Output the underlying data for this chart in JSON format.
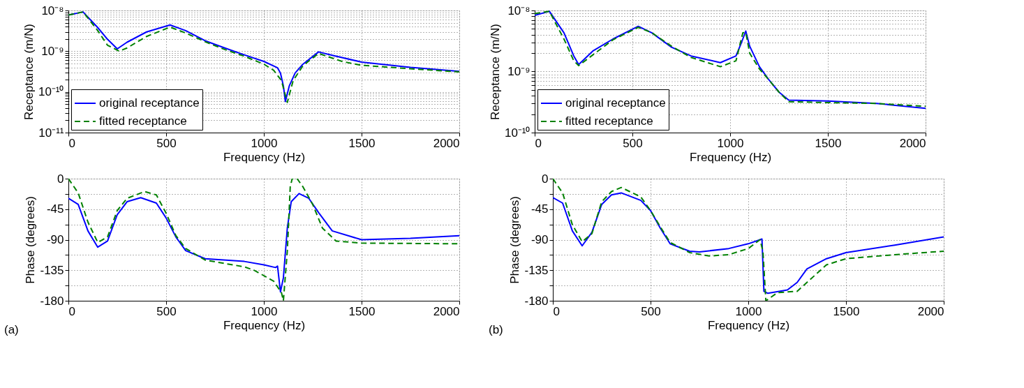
{
  "chart_data": [
    {
      "type": "line",
      "xlabel": "Frequency (Hz)",
      "ylabel": "Receptance (m/N)",
      "log": "y",
      "grid": true,
      "legend": "bottom left",
      "xlim": [
        0,
        2000
      ],
      "xticks": [
        0,
        500,
        1000,
        1500,
        2000
      ],
      "ylim": [
        1e-11,
        1e-08
      ],
      "yticks": [
        {
          "value": 1e-11,
          "label": "10⁻¹¹"
        },
        {
          "value": 2e-11,
          "label": null
        },
        {
          "value": 3e-11,
          "label": null
        },
        {
          "value": 4e-11,
          "label": null
        },
        {
          "value": 5e-11,
          "label": null
        },
        {
          "value": 6e-11,
          "label": null
        },
        {
          "value": 7e-11,
          "label": null
        },
        {
          "value": 8e-11,
          "label": null
        },
        {
          "value": 9e-11,
          "label": null
        },
        {
          "value": 1e-10,
          "label": "10⁻¹⁰"
        },
        {
          "value": 2e-10,
          "label": null
        },
        {
          "value": 3e-10,
          "label": null
        },
        {
          "value": 4e-10,
          "label": null
        },
        {
          "value": 5e-10,
          "label": null
        },
        {
          "value": 6e-10,
          "label": null
        },
        {
          "value": 7e-10,
          "label": null
        },
        {
          "value": 8e-10,
          "label": null
        },
        {
          "value": 9e-10,
          "label": null
        },
        {
          "value": 1e-09,
          "label": "10⁻⁹"
        },
        {
          "value": 2e-09,
          "label": null
        },
        {
          "value": 3e-09,
          "label": null
        },
        {
          "value": 4e-09,
          "label": null
        },
        {
          "value": 5e-09,
          "label": null
        },
        {
          "value": 6e-09,
          "label": null
        },
        {
          "value": 7e-09,
          "label": null
        },
        {
          "value": 8e-09,
          "label": null
        },
        {
          "value": 9e-09,
          "label": null
        },
        {
          "value": 1e-08,
          "label": "10⁻⁸"
        }
      ],
      "series": [
        {
          "name": "original receptance",
          "color": "#0000ff",
          "line_style": "solid",
          "x": [
            0,
            75,
            150,
            200,
            250,
            300,
            400,
            520,
            600,
            700,
            800,
            900,
            1000,
            1070,
            1085,
            1100,
            1110,
            1130,
            1160,
            1200,
            1280,
            1350,
            1500,
            1750,
            2000
          ],
          "values": [
            7.7e-09,
            9.2e-09,
            3.8e-09,
            1.96e-09,
            1.14e-09,
            1.66e-09,
            2.97e-09,
            4.4e-09,
            3.2e-09,
            1.8e-09,
            1.2e-09,
            8.1e-10,
            5.6e-10,
            3.9e-10,
            2.9e-10,
            1.4e-10,
            5.8e-11,
            1.4e-10,
            2.9e-10,
            4.8e-10,
            9.6e-10,
            7.9e-10,
            5.4e-10,
            4e-10,
            3.2e-10
          ]
        },
        {
          "name": "fitted receptance",
          "color": "#008000",
          "line_style": "dashed",
          "x": [
            0,
            75,
            150,
            200,
            260,
            300,
            400,
            520,
            600,
            700,
            800,
            900,
            1000,
            1050,
            1090,
            1120,
            1150,
            1200,
            1280,
            1400,
            1500,
            1750,
            2000
          ],
          "values": [
            7.7e-09,
            9.2e-09,
            3.2e-09,
            1.4e-09,
            1e-09,
            1.2e-09,
            2.3e-09,
            3.9e-09,
            2.8e-09,
            1.7e-09,
            1.1e-09,
            7.5e-10,
            4.8e-10,
            3.4e-10,
            1.9e-10,
            5.5e-11,
            1.9e-10,
            4.4e-10,
            8.8e-10,
            5.6e-10,
            4.5e-10,
            3.7e-10,
            3.1e-10
          ]
        }
      ]
    },
    {
      "type": "line",
      "xlabel": "Frequency (Hz)",
      "ylabel": "Receptance (m/N)",
      "log": "y",
      "grid": true,
      "legend": "bottom left",
      "xlim": [
        0,
        2000
      ],
      "xticks": [
        0,
        500,
        1000,
        1500,
        2000
      ],
      "ylim": [
        1e-10,
        1e-08
      ],
      "yticks": [
        {
          "value": 1e-10,
          "label": "10⁻¹⁰"
        },
        {
          "value": 2e-10,
          "label": null
        },
        {
          "value": 3e-10,
          "label": null
        },
        {
          "value": 4e-10,
          "label": null
        },
        {
          "value": 5e-10,
          "label": null
        },
        {
          "value": 6e-10,
          "label": null
        },
        {
          "value": 7e-10,
          "label": null
        },
        {
          "value": 8e-10,
          "label": null
        },
        {
          "value": 9e-10,
          "label": null
        },
        {
          "value": 1e-09,
          "label": "10⁻⁹"
        },
        {
          "value": 2e-09,
          "label": null
        },
        {
          "value": 3e-09,
          "label": null
        },
        {
          "value": 4e-09,
          "label": null
        },
        {
          "value": 5e-09,
          "label": null
        },
        {
          "value": 6e-09,
          "label": null
        },
        {
          "value": 7e-09,
          "label": null
        },
        {
          "value": 8e-09,
          "label": null
        },
        {
          "value": 9e-09,
          "label": null
        },
        {
          "value": 1e-08,
          "label": "10⁻⁸"
        }
      ],
      "series": [
        {
          "name": "original receptance",
          "color": "#0000ff",
          "line_style": "solid",
          "x": [
            0,
            75,
            150,
            200,
            225,
            300,
            400,
            530,
            600,
            700,
            800,
            950,
            1030,
            1060,
            1080,
            1100,
            1150,
            1200,
            1250,
            1300,
            1500,
            1750,
            2000
          ],
          "values": [
            8.3e-09,
            9.7e-09,
            4.3e-09,
            1.8e-09,
            1.3e-09,
            2.2e-09,
            3.4e-09,
            5.5e-09,
            4.3e-09,
            2.5e-09,
            1.8e-09,
            1.4e-09,
            1.8e-09,
            3.1e-09,
            4.6e-09,
            2.6e-09,
            1.2e-09,
            7.2e-10,
            4.6e-10,
            3.4e-10,
            3.3e-10,
            3e-10,
            2.5e-10
          ]
        },
        {
          "name": "fitted receptance",
          "color": "#008000",
          "line_style": "dashed",
          "x": [
            0,
            75,
            150,
            200,
            225,
            300,
            400,
            530,
            600,
            700,
            800,
            950,
            1030,
            1065,
            1080,
            1100,
            1150,
            1200,
            1250,
            1300,
            1500,
            1750,
            2000
          ],
          "values": [
            8.9e-09,
            9.7e-09,
            3.4e-09,
            1.5e-09,
            1.25e-09,
            1.9e-09,
            3.3e-09,
            5.3e-09,
            4.3e-09,
            2.6e-09,
            1.7e-09,
            1.2e-09,
            1.5e-09,
            4.3e-09,
            4.4e-09,
            2e-09,
            1.1e-09,
            7.2e-10,
            4.6e-10,
            3.2e-10,
            3.1e-10,
            3e-10,
            2.7e-10
          ]
        }
      ]
    },
    {
      "type": "line",
      "xlabel": "Frequency (Hz)",
      "ylabel": "Phase (degrees)",
      "grid": true,
      "xlim": [
        0,
        2000
      ],
      "xticks": [
        0,
        500,
        1000,
        1500,
        2000
      ],
      "ylim": [
        -180,
        0
      ],
      "yticks": [
        -180,
        {
          "value": -157.5,
          "label": null
        },
        -135,
        {
          "value": -112.5,
          "label": null
        },
        -90,
        {
          "value": -67.5,
          "label": null
        },
        -45,
        {
          "value": -22.5,
          "label": null
        },
        0
      ],
      "annotations": [
        "(a)"
      ],
      "series": [
        {
          "color": "#0000ff",
          "line_style": "solid",
          "x": [
            0,
            50,
            100,
            150,
            200,
            250,
            300,
            370,
            450,
            500,
            550,
            600,
            700,
            900,
            1000,
            1060,
            1070,
            1085,
            1100,
            1120,
            1140,
            1180,
            1230,
            1280,
            1350,
            1500,
            1750,
            2000
          ],
          "values": [
            -29,
            -38,
            -77,
            -101,
            -92,
            -53,
            -34,
            -28,
            -36,
            -58,
            -86,
            -106,
            -118,
            -122,
            -127,
            -131,
            -129,
            -167,
            -146,
            -73,
            -34,
            -22,
            -29,
            -50,
            -77,
            -90,
            -88,
            -84
          ]
        },
        {
          "color": "#008000",
          "line_style": "dashed",
          "x": [
            0,
            50,
            100,
            150,
            200,
            250,
            300,
            390,
            450,
            500,
            550,
            600,
            700,
            900,
            950,
            1050,
            1090,
            1100,
            1120,
            1135,
            1145,
            1170,
            1200,
            1250,
            1300,
            1370,
            1500,
            2000
          ],
          "values": [
            0,
            -21,
            -64,
            -94,
            -86,
            -47,
            -29,
            -19,
            -24,
            -51,
            -84,
            -103,
            -120,
            -130,
            -135,
            -151,
            -168,
            -180,
            -107,
            -12,
            0,
            0,
            -12,
            -38,
            -73,
            -92,
            -95,
            -96
          ]
        }
      ]
    },
    {
      "type": "line",
      "xlabel": "Frequency (Hz)",
      "ylabel": "Phase (degrees)",
      "grid": true,
      "xlim": [
        0,
        2000
      ],
      "xticks": [
        0,
        500,
        1000,
        1500,
        2000
      ],
      "ylim": [
        -180,
        0
      ],
      "yticks": [
        -180,
        {
          "value": -157.5,
          "label": null
        },
        -135,
        {
          "value": -112.5,
          "label": null
        },
        -90,
        {
          "value": -67.5,
          "label": null
        },
        -45,
        {
          "value": -22.5,
          "label": null
        },
        0
      ],
      "annotations": [
        "(b)"
      ],
      "series": [
        {
          "color": "#0000ff",
          "line_style": "solid",
          "x": [
            0,
            50,
            100,
            150,
            200,
            250,
            300,
            350,
            450,
            500,
            550,
            600,
            700,
            750,
            900,
            1000,
            1070,
            1080,
            1100,
            1200,
            1250,
            1300,
            1400,
            1500,
            1750,
            2000
          ],
          "values": [
            -28,
            -36,
            -77,
            -99,
            -79,
            -38,
            -24,
            -21,
            -32,
            -47,
            -73,
            -96,
            -107,
            -108,
            -103,
            -96,
            -89,
            -166,
            -169,
            -164,
            -153,
            -133,
            -118,
            -109,
            -98,
            -86
          ]
        },
        {
          "color": "#008000",
          "line_style": "dashed",
          "x": [
            0,
            50,
            100,
            150,
            200,
            250,
            300,
            350,
            450,
            500,
            550,
            600,
            700,
            800,
            900,
            1000,
            1060,
            1075,
            1090,
            1150,
            1250,
            1300,
            1400,
            1500,
            1750,
            2000
          ],
          "values": [
            0,
            -21,
            -68,
            -93,
            -81,
            -34,
            -19,
            -13,
            -27,
            -47,
            -71,
            -94,
            -109,
            -114,
            -112,
            -103,
            -90,
            -107,
            -180,
            -168,
            -166,
            -153,
            -127,
            -118,
            -112,
            -107
          ]
        }
      ]
    }
  ]
}
